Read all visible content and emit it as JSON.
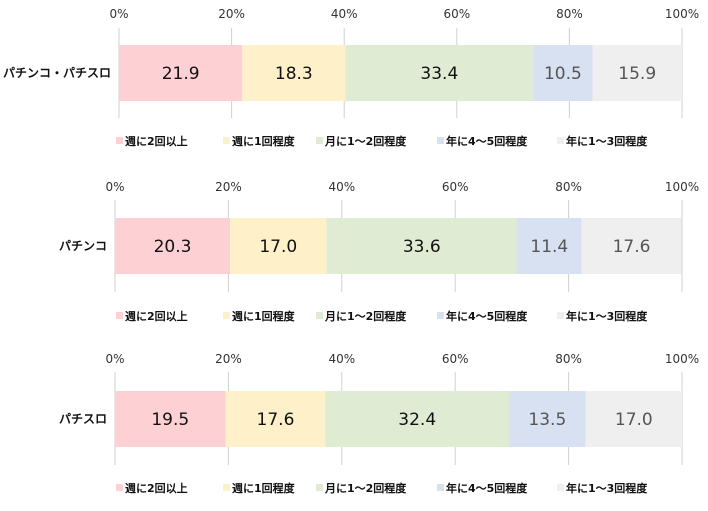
{
  "chart_data": [
    {
      "type": "bar",
      "orientation": "horizontal",
      "stacked": true,
      "categories": [
        "パチンコ・パチスロ"
      ],
      "xlim": [
        0,
        100
      ],
      "tick_labels": [
        "0%",
        "20%",
        "40%",
        "60%",
        "80%",
        "100%"
      ],
      "series": [
        {
          "name": "週に2回以上",
          "values": [
            21.9
          ]
        },
        {
          "name": "週に1回程度",
          "values": [
            18.3
          ]
        },
        {
          "name": "月に1～2回程度",
          "values": [
            33.4
          ]
        },
        {
          "name": "年に4～5回程度",
          "values": [
            10.5
          ]
        },
        {
          "name": "年に1～3回程度",
          "values": [
            15.9
          ]
        }
      ],
      "legend": "bottom",
      "grid": true
    },
    {
      "type": "bar",
      "orientation": "horizontal",
      "stacked": true,
      "categories": [
        "パチンコ"
      ],
      "xlim": [
        0,
        100
      ],
      "tick_labels": [
        "0%",
        "20%",
        "40%",
        "60%",
        "80%",
        "100%"
      ],
      "series": [
        {
          "name": "週に2回以上",
          "values": [
            20.3
          ]
        },
        {
          "name": "週に1回程度",
          "values": [
            17.0
          ]
        },
        {
          "name": "月に1～2回程度",
          "values": [
            33.6
          ]
        },
        {
          "name": "年に4～5回程度",
          "values": [
            11.4
          ]
        },
        {
          "name": "年に1～3回程度",
          "values": [
            17.6
          ]
        }
      ],
      "legend": "bottom",
      "grid": true
    },
    {
      "type": "bar",
      "orientation": "horizontal",
      "stacked": true,
      "categories": [
        "パチスロ"
      ],
      "xlim": [
        0,
        100
      ],
      "tick_labels": [
        "0%",
        "20%",
        "40%",
        "60%",
        "80%",
        "100%"
      ],
      "series": [
        {
          "name": "週に2回以上",
          "values": [
            19.5
          ]
        },
        {
          "name": "週に1回程度",
          "values": [
            17.6
          ]
        },
        {
          "name": "月に1～2回程度",
          "values": [
            32.4
          ]
        },
        {
          "name": "年に4～5回程度",
          "values": [
            13.5
          ]
        },
        {
          "name": "年に1～3回程度",
          "values": [
            17.0
          ]
        }
      ],
      "legend": "bottom",
      "grid": true
    }
  ],
  "colors": [
    "#fdd0d3",
    "#fef0c9",
    "#e0ebd4",
    "#d8e1f1",
    "#efefef"
  ]
}
